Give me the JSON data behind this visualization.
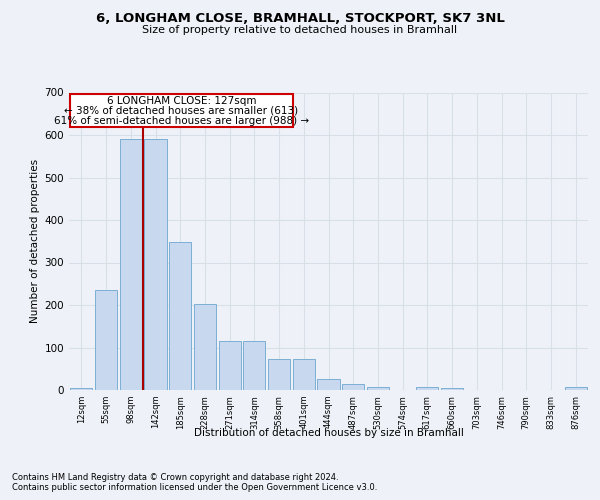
{
  "title1": "6, LONGHAM CLOSE, BRAMHALL, STOCKPORT, SK7 3NL",
  "title2": "Size of property relative to detached houses in Bramhall",
  "xlabel": "Distribution of detached houses by size in Bramhall",
  "ylabel": "Number of detached properties",
  "categories": [
    "12sqm",
    "55sqm",
    "98sqm",
    "142sqm",
    "185sqm",
    "228sqm",
    "271sqm",
    "314sqm",
    "358sqm",
    "401sqm",
    "444sqm",
    "487sqm",
    "530sqm",
    "574sqm",
    "617sqm",
    "660sqm",
    "703sqm",
    "746sqm",
    "790sqm",
    "833sqm",
    "876sqm"
  ],
  "values": [
    5,
    235,
    590,
    590,
    348,
    203,
    115,
    115,
    72,
    72,
    25,
    13,
    8,
    0,
    7,
    5,
    0,
    0,
    0,
    0,
    7
  ],
  "bar_color": "#c8d8ef",
  "bar_edge_color": "#7bafd4",
  "vline_color": "#aa0000",
  "annotation_box_color": "#ffffff",
  "annotation_box_edge": "#cc0000",
  "ann_label": "6 LONGHAM CLOSE: 127sqm",
  "ann_line1": "← 38% of detached houses are smaller (613)",
  "ann_line2": "61% of semi-detached houses are larger (988) →",
  "footer1": "Contains HM Land Registry data © Crown copyright and database right 2024.",
  "footer2": "Contains public sector information licensed under the Open Government Licence v3.0.",
  "ylim": [
    0,
    700
  ],
  "yticks": [
    0,
    100,
    200,
    300,
    400,
    500,
    600,
    700
  ],
  "background_color": "#eef2f8",
  "grid_color": "#d8dfe8"
}
